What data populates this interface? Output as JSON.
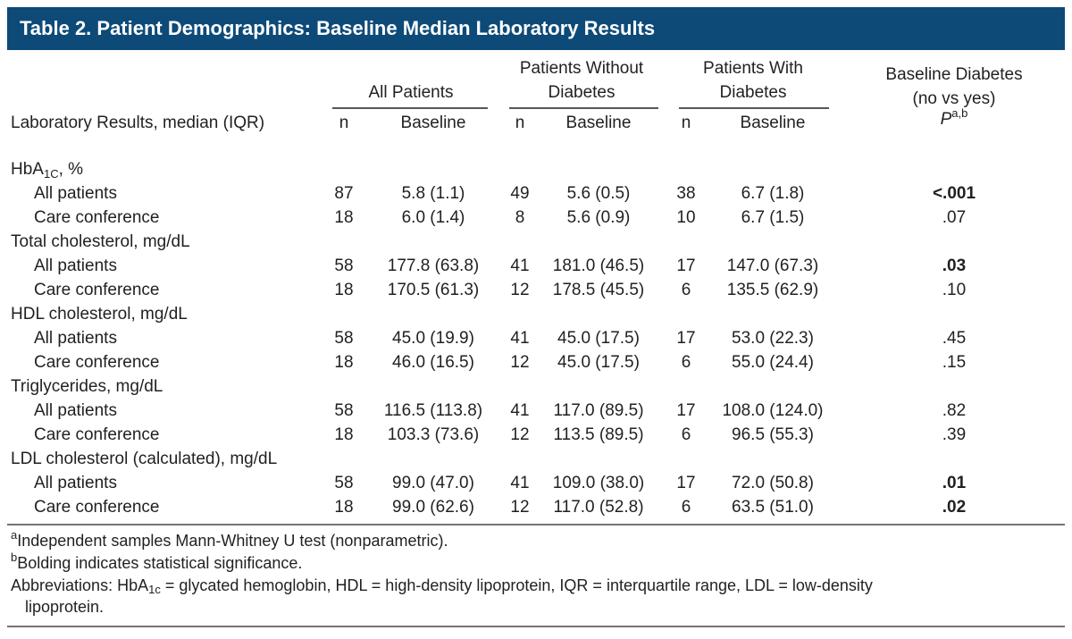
{
  "title": "Table 2. Patient Demographics: Baseline Median Laboratory Results",
  "header": {
    "label": "Laboratory Results, median (IQR)",
    "groups": [
      {
        "lines": [
          "All Patients"
        ],
        "n": "n",
        "baseline": "Baseline"
      },
      {
        "lines": [
          "Patients Without",
          "Diabetes"
        ],
        "n": "n",
        "baseline": "Baseline"
      },
      {
        "lines": [
          "Patients With",
          "Diabetes"
        ],
        "n": "n",
        "baseline": "Baseline"
      }
    ],
    "p": {
      "lines": [
        "Baseline Diabetes",
        "(no vs yes)"
      ],
      "symbol": "P",
      "sup": "a,b"
    }
  },
  "sections": [
    {
      "label": {
        "prefix": "HbA",
        "sub": "1C",
        "suffix": ", %"
      },
      "rows": [
        {
          "label": "All patients",
          "cells": [
            "87",
            "5.8 (1.1)",
            "49",
            "5.6 (0.5)",
            "38",
            "6.7 (1.8)",
            "<.001"
          ],
          "significant": true
        },
        {
          "label": "Care conference",
          "cells": [
            "18",
            "6.0 (1.4)",
            "8",
            "5.6 (0.9)",
            "10",
            "6.7 (1.5)",
            ".07"
          ],
          "significant": false
        }
      ]
    },
    {
      "label": {
        "prefix": "Total cholesterol, mg/dL"
      },
      "rows": [
        {
          "label": "All patients",
          "cells": [
            "58",
            "177.8 (63.8)",
            "41",
            "181.0 (46.5)",
            "17",
            "147.0 (67.3)",
            ".03"
          ],
          "significant": true
        },
        {
          "label": "Care conference",
          "cells": [
            "18",
            "170.5 (61.3)",
            "12",
            "178.5 (45.5)",
            "6",
            "135.5 (62.9)",
            ".10"
          ],
          "significant": false
        }
      ]
    },
    {
      "label": {
        "prefix": "HDL cholesterol, mg/dL"
      },
      "rows": [
        {
          "label": "All patients",
          "cells": [
            "58",
            "45.0 (19.9)",
            "41",
            "45.0 (17.5)",
            "17",
            "53.0 (22.3)",
            ".45"
          ],
          "significant": false
        },
        {
          "label": "Care conference",
          "cells": [
            "18",
            "46.0 (16.5)",
            "12",
            "45.0 (17.5)",
            "6",
            "55.0 (24.4)",
            ".15"
          ],
          "significant": false
        }
      ]
    },
    {
      "label": {
        "prefix": "Triglycerides, mg/dL"
      },
      "rows": [
        {
          "label": "All patients",
          "cells": [
            "58",
            "116.5 (113.8)",
            "41",
            "117.0 (89.5)",
            "17",
            "108.0 (124.0)",
            ".82"
          ],
          "significant": false
        },
        {
          "label": "Care conference",
          "cells": [
            "18",
            "103.3 (73.6)",
            "12",
            "113.5 (89.5)",
            "6",
            "96.5 (55.3)",
            ".39"
          ],
          "significant": false
        }
      ]
    },
    {
      "label": {
        "prefix": "LDL cholesterol (calculated), mg/dL"
      },
      "rows": [
        {
          "label": "All patients",
          "cells": [
            "58",
            "99.0 (47.0)",
            "41",
            "109.0 (38.0)",
            "17",
            "72.0 (50.8)",
            ".01"
          ],
          "significant": true
        },
        {
          "label": "Care conference",
          "cells": [
            "18",
            "99.0 (62.6)",
            "12",
            "117.0 (52.8)",
            "6",
            "63.5 (51.0)",
            ".02"
          ],
          "significant": true
        }
      ]
    }
  ],
  "footnotes": [
    {
      "mark": "a",
      "text": "Independent samples Mann-Whitney U test (nonparametric)."
    },
    {
      "mark": "b",
      "text": "Bolding indicates statistical significance."
    }
  ],
  "abbreviations": {
    "prefix": "Abbreviations:  HbA",
    "sub": "1c",
    "rest": " = glycated hemoglobin, HDL = high-density lipoprotein, IQR = interquartile range,  LDL = low-density",
    "continuation": "lipoprotein."
  }
}
